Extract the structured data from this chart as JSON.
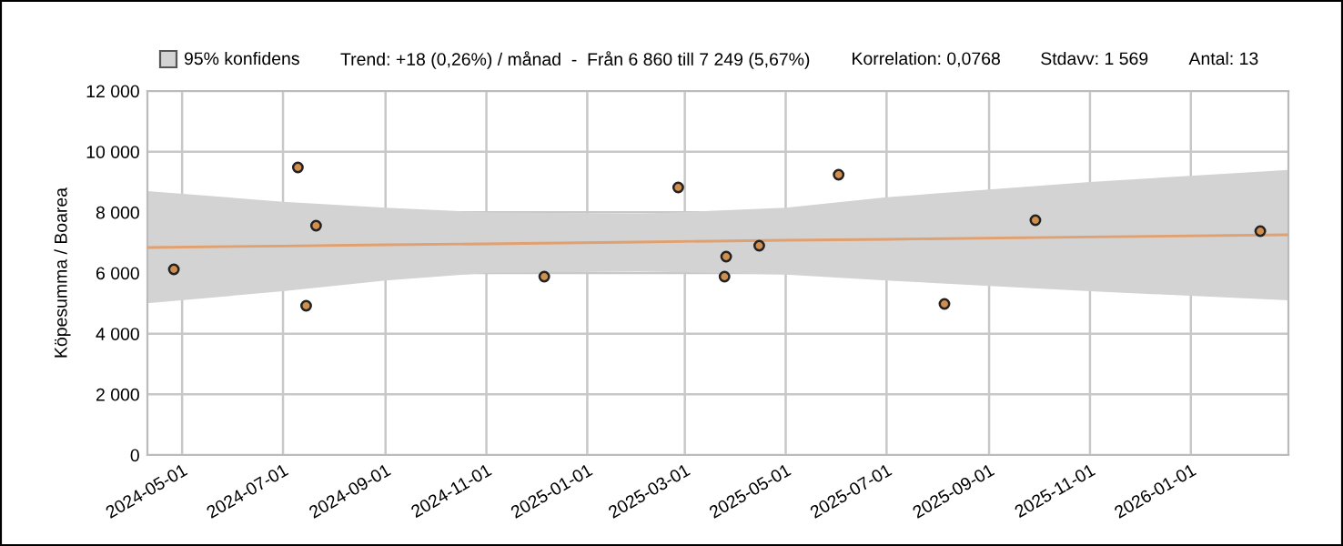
{
  "chart_data": {
    "type": "scatter",
    "ylabel": "Köpesumma / Boarea",
    "annotations": [
      "95% konfidens",
      "Trend: +18 (0,26%) / månad  -  Från 6 860 till 7 249 (5,67%)",
      "Korrelation: 0,0768",
      "Stdavv: 1 569",
      "Antal: 13"
    ],
    "series": [
      {
        "color": "#d08f4f",
        "marker": "circle",
        "x": [
          "2024-04-26",
          "2024-07-10",
          "2024-07-15",
          "2024-07-21",
          "2024-12-06",
          "2025-02-25",
          "2025-03-25",
          "2025-03-26",
          "2025-04-15",
          "2025-06-02",
          "2025-08-05",
          "2025-09-29",
          "2026-02-12"
        ],
        "values": [
          6120,
          9480,
          4920,
          7560,
          5880,
          8820,
          5880,
          6540,
          6900,
          9240,
          4980,
          7740,
          7380
        ]
      },
      {
        "type": "line",
        "color": "#e0a070",
        "x": [
          "2024-04-10",
          "2024-07-01",
          "2024-09-01",
          "2024-11-01",
          "2025-02-01",
          "2025-05-01",
          "2025-07-01",
          "2025-11-01",
          "2026-03-01"
        ],
        "values": [
          6840,
          6890,
          6930,
          6960,
          7020,
          7080,
          7110,
          7190,
          7260
        ],
        "upper": [
          8700,
          8350,
          8150,
          8000,
          7950,
          8150,
          8500,
          9000,
          9400
        ],
        "lower": [
          5000,
          5400,
          5750,
          6000,
          6050,
          5950,
          5750,
          5400,
          5100
        ]
      }
    ],
    "grid": true,
    "legend": false,
    "xlim": [
      "2024-04-10",
      "2026-03-01"
    ],
    "xticks": [
      "2024-05-01",
      "2024-07-01",
      "2024-09-01",
      "2024-11-01",
      "2025-01-01",
      "2025-03-01",
      "2025-05-01",
      "2025-07-01",
      "2025-09-01",
      "2025-11-01",
      "2026-01-01"
    ],
    "ylim": [
      0,
      12000
    ],
    "yticks": [
      0,
      {
        "value": 2000,
        "label": "2 000"
      },
      {
        "value": 4000,
        "label": "4 000"
      },
      {
        "value": 6000,
        "label": "6 000"
      },
      {
        "value": 8000,
        "label": "8 000"
      },
      {
        "value": 10000,
        "label": "10 000"
      },
      {
        "value": 12000,
        "label": "12 000"
      }
    ]
  }
}
